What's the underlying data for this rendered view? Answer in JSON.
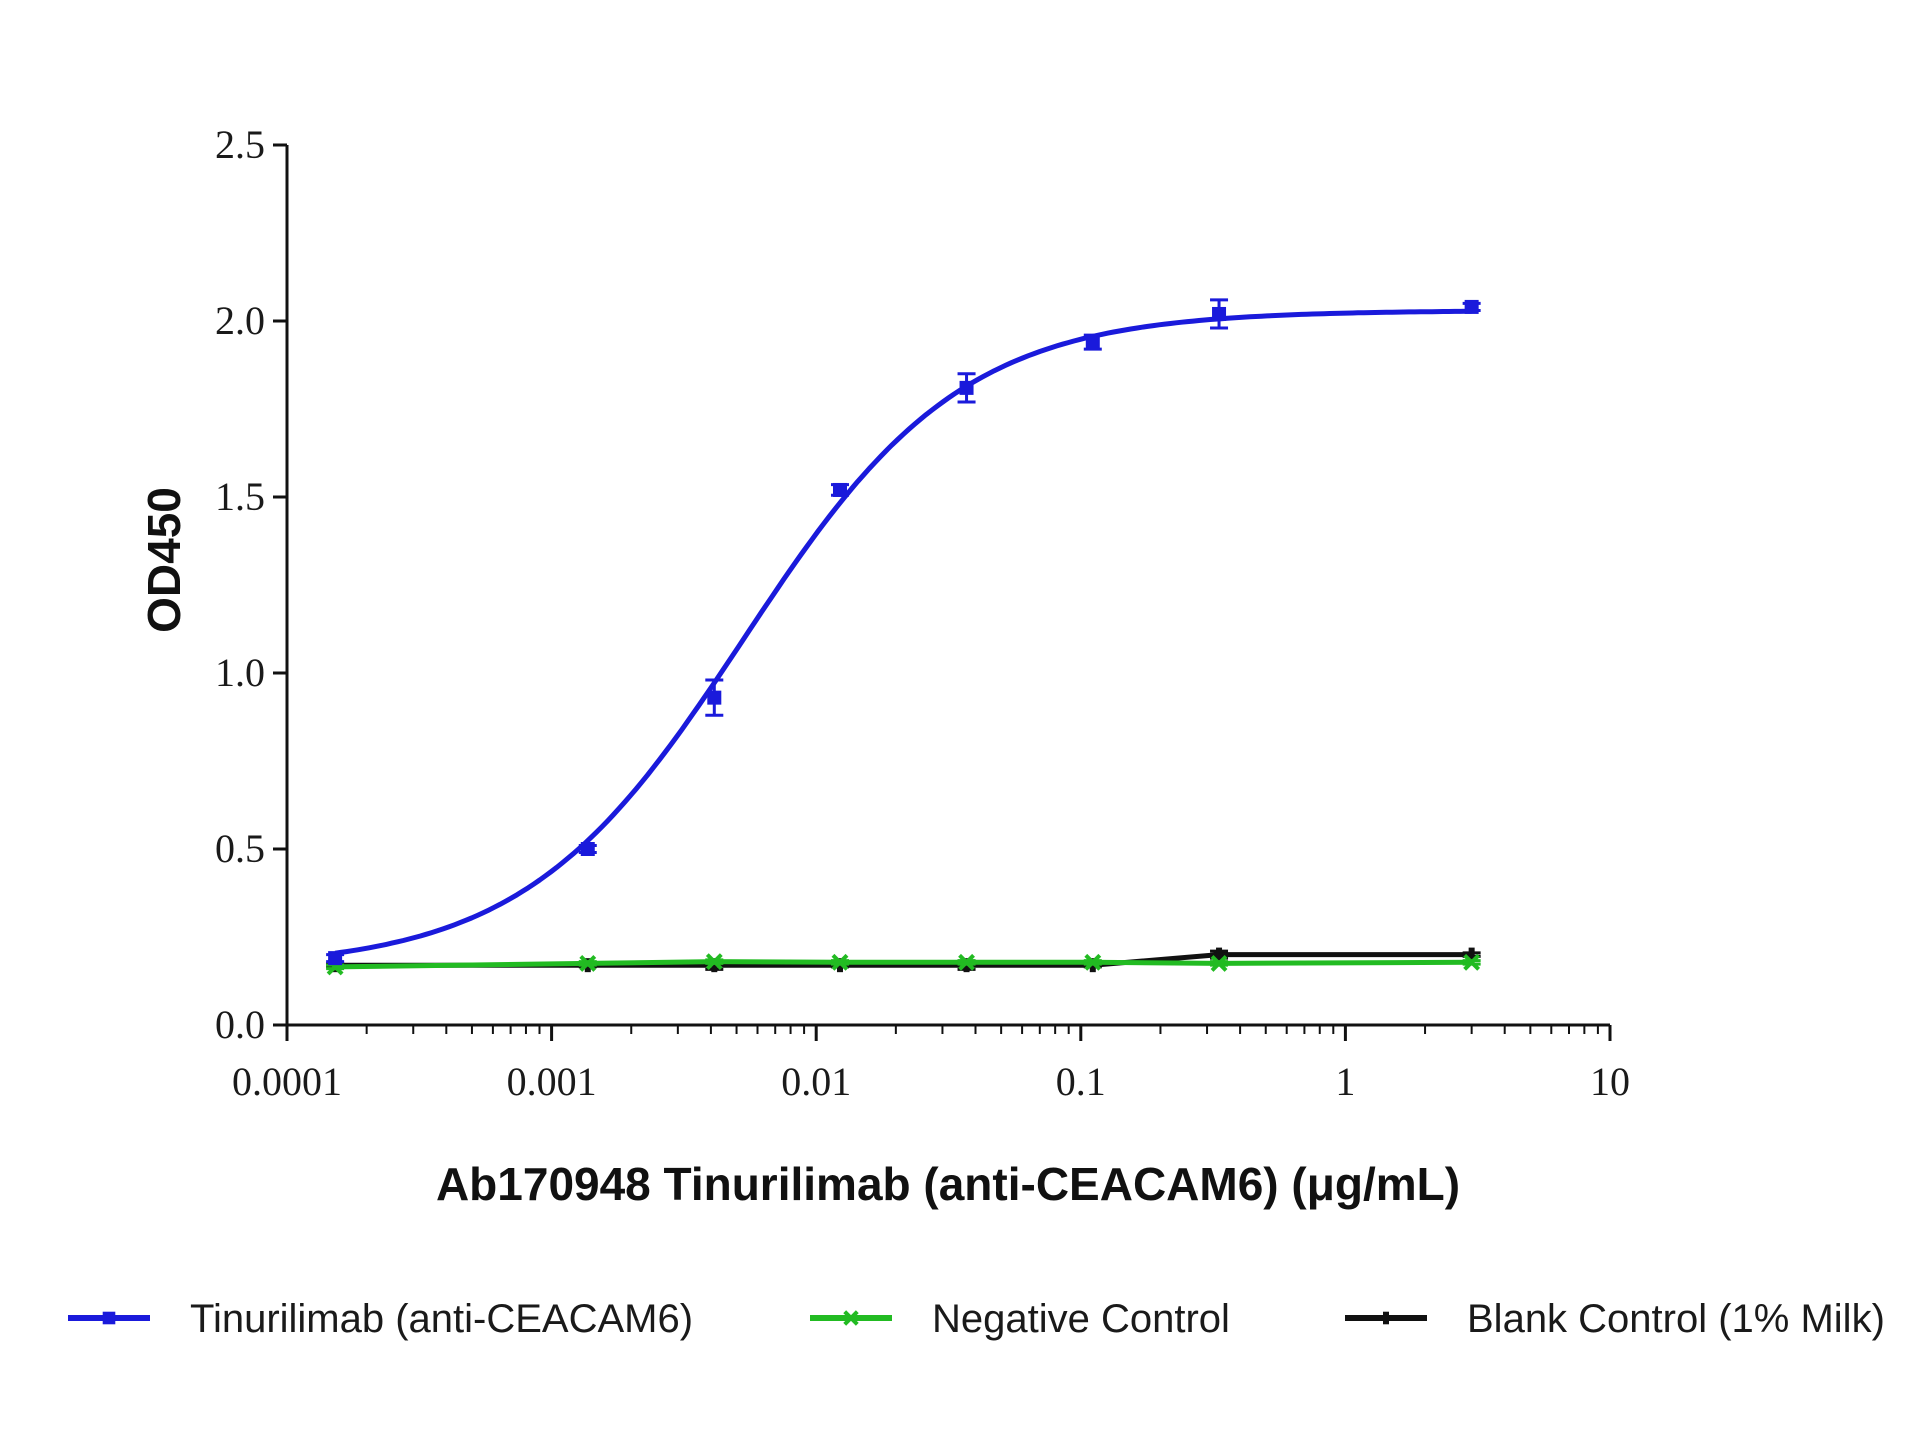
{
  "chart_data": {
    "type": "line",
    "xscale": "log",
    "xlim": [
      0.0001,
      10
    ],
    "ylim": [
      0,
      2.5
    ],
    "xlabel": "Ab170948 Tinurilimab (anti-CEACAM6) (μg/mL)",
    "ylabel": "OD450",
    "x_ticks": [
      {
        "value": 0.0001,
        "label": "0.0001"
      },
      {
        "value": 0.001,
        "label": "0.001"
      },
      {
        "value": 0.01,
        "label": "0.01"
      },
      {
        "value": 0.1,
        "label": "0.1"
      },
      {
        "value": 1,
        "label": "1"
      },
      {
        "value": 10,
        "label": "10"
      }
    ],
    "y_ticks": [
      {
        "value": 0.0,
        "label": "0.0"
      },
      {
        "value": 0.5,
        "label": "0.5"
      },
      {
        "value": 1.0,
        "label": "1.0"
      },
      {
        "value": 1.5,
        "label": "1.5"
      },
      {
        "value": 2.0,
        "label": "2.0"
      },
      {
        "value": 2.5,
        "label": "2.5"
      }
    ],
    "legend_position": "bottom",
    "grid": false,
    "series": [
      {
        "name": "Tinurilimab (anti-CEACAM6)",
        "color": "#1a1adb",
        "marker": "square",
        "x": [
          0.000152,
          0.00137,
          0.00412,
          0.0123,
          0.037,
          0.111,
          0.333,
          3.0
        ],
        "y": [
          0.19,
          0.5,
          0.93,
          1.52,
          1.81,
          1.94,
          2.02,
          2.04
        ],
        "err": [
          0.01,
          0.01,
          0.05,
          0.015,
          0.04,
          0.02,
          0.04,
          0.01
        ],
        "fit": {
          "bottom": 0.16,
          "top": 2.03,
          "ec50": 0.0053,
          "hill": 1.05
        }
      },
      {
        "name": "Negative Control",
        "color": "#22bb22",
        "marker": "x",
        "x": [
          0.000152,
          0.00137,
          0.00412,
          0.0123,
          0.037,
          0.111,
          0.333,
          3.0
        ],
        "y": [
          0.165,
          0.175,
          0.18,
          0.178,
          0.178,
          0.178,
          0.175,
          0.178
        ],
        "err": [
          0.005,
          0.005,
          0.005,
          0.005,
          0.005,
          0.005,
          0.005,
          0.005
        ]
      },
      {
        "name": "Blank Control (1% Milk)",
        "color": "#111111",
        "marker": "dash",
        "x": [
          0.000152,
          0.00137,
          0.00412,
          0.0123,
          0.037,
          0.111,
          0.333,
          3.0
        ],
        "y": [
          0.17,
          0.17,
          0.17,
          0.17,
          0.17,
          0.17,
          0.2,
          0.2
        ],
        "err": [
          0.005,
          0.005,
          0.012,
          0.005,
          0.012,
          0.005,
          0.01,
          0.005
        ]
      }
    ]
  }
}
